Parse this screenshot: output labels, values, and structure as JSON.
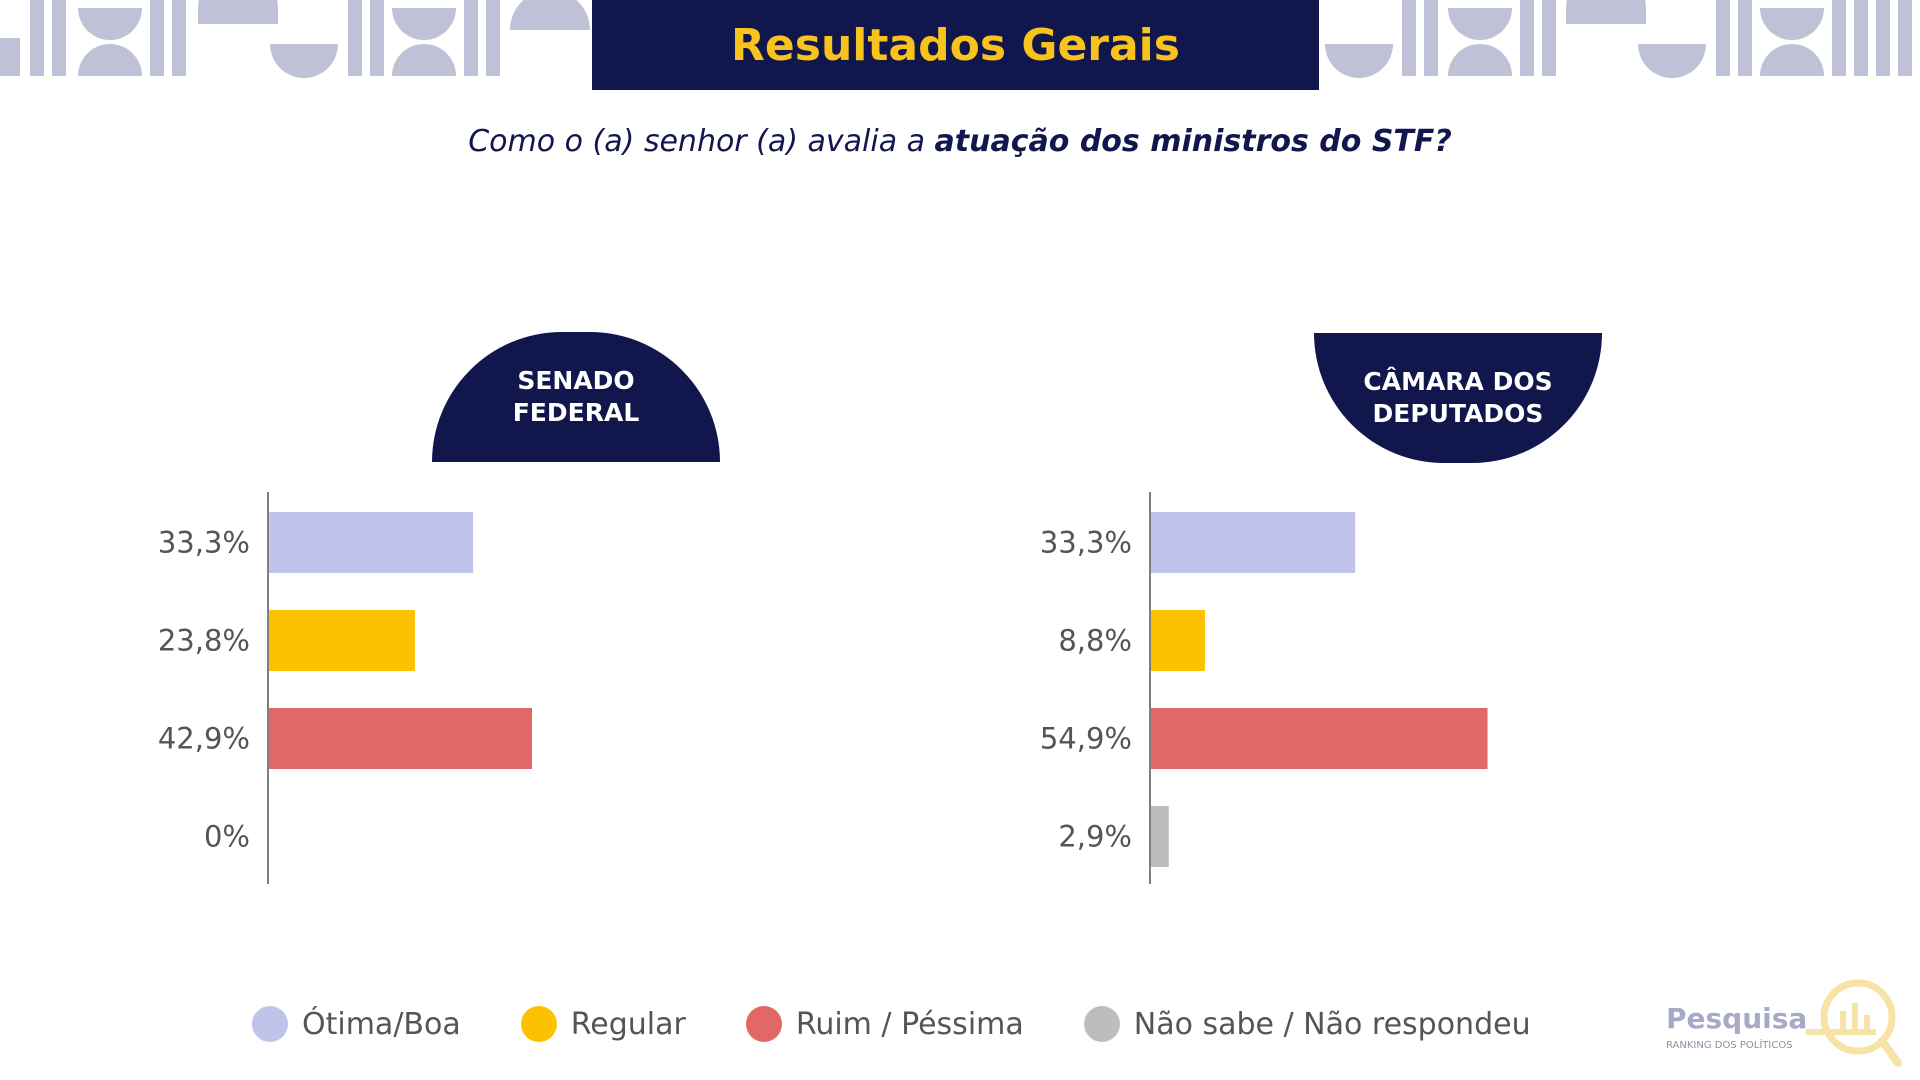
{
  "header": {
    "title": "Resultados Gerais",
    "question_prefix": "Como o (a) senhor (a) avalia a ",
    "question_bold": "atuação dos ministros do STF?"
  },
  "colors": {
    "navy": "#11164d",
    "accent_yellow": "#f7c31c",
    "decor": "#bfc1d6"
  },
  "chart_data": [
    {
      "type": "bar",
      "orientation": "horizontal",
      "title": "SENADO\nFEDERAL",
      "categories": [
        "Ótima/Boa",
        "Regular",
        "Ruim / Péssima",
        "Não sabe / Não respondeu"
      ],
      "values": [
        33.3,
        23.8,
        42.9,
        0
      ],
      "labels": [
        "33,3%",
        "23,8%",
        "42,9%",
        "0%"
      ],
      "colors": [
        "#c0c3ea",
        "#fcc200",
        "#e26866",
        "#bdbdbd"
      ]
    },
    {
      "type": "bar",
      "orientation": "horizontal",
      "title": "CÂMARA DOS\nDEPUTADOS",
      "categories": [
        "Ótima/Boa",
        "Regular",
        "Ruim / Péssima",
        "Não sabe / Não respondeu"
      ],
      "values": [
        33.3,
        8.8,
        54.9,
        2.9
      ],
      "labels": [
        "33,3%",
        "8,8%",
        "54,9%",
        "2,9%"
      ],
      "colors": [
        "#c0c3ea",
        "#fcc200",
        "#e26866",
        "#bdbdbd"
      ]
    }
  ],
  "legend": [
    {
      "label": "Ótima/Boa",
      "color": "#c0c3ea"
    },
    {
      "label": "Regular",
      "color": "#fcc200"
    },
    {
      "label": "Ruim / Péssima",
      "color": "#e26866"
    },
    {
      "label": "Não sabe / Não respondeu",
      "color": "#bdbdbd"
    }
  ],
  "logo": {
    "title": "Pesquisa",
    "subtitle": "RANKING DOS POLÍTICOS",
    "icon": "magnifier-chart-icon"
  }
}
